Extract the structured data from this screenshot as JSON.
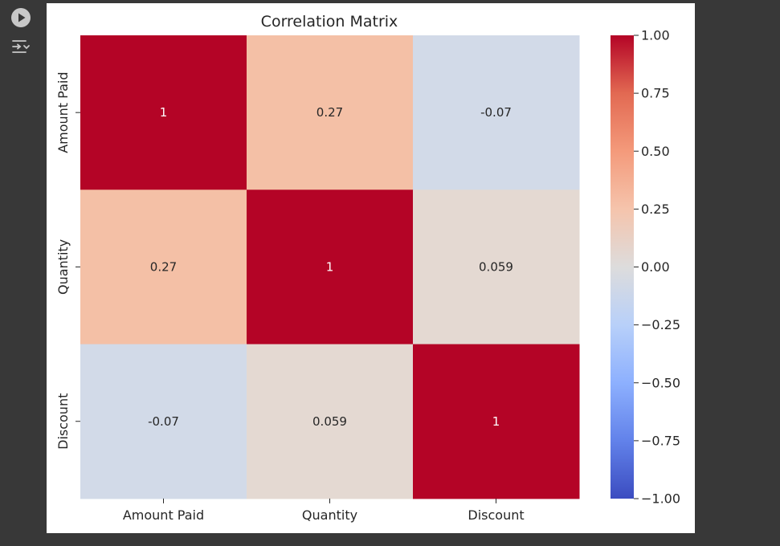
{
  "output_toolbar": {
    "run_icon": "play-circle-icon",
    "output_options_icon": "output-options-icon"
  },
  "chart_data": {
    "type": "heatmap",
    "title": "Correlation Matrix",
    "x_categories": [
      "Amount Paid",
      "Quantity",
      "Discount"
    ],
    "y_categories": [
      "Amount Paid",
      "Quantity",
      "Discount"
    ],
    "values": [
      [
        1,
        0.27,
        -0.07
      ],
      [
        0.27,
        1,
        0.059
      ],
      [
        -0.07,
        0.059,
        1
      ]
    ],
    "annotations": [
      [
        "1",
        "0.27",
        "-0.07"
      ],
      [
        "0.27",
        "1",
        "0.059"
      ],
      [
        "-0.07",
        "0.059",
        "1"
      ]
    ],
    "colormap": "coolwarm",
    "vmin": -1,
    "vmax": 1,
    "colorbar_ticks": [
      {
        "value": 1.0,
        "label": "1.00"
      },
      {
        "value": 0.75,
        "label": "0.75"
      },
      {
        "value": 0.5,
        "label": "0.50"
      },
      {
        "value": 0.25,
        "label": "0.25"
      },
      {
        "value": 0.0,
        "label": "0.00"
      },
      {
        "value": -0.25,
        "label": "−0.25"
      },
      {
        "value": -0.5,
        "label": "−0.50"
      },
      {
        "value": -0.75,
        "label": "−0.75"
      },
      {
        "value": -1.0,
        "label": "−1.00"
      }
    ],
    "cell_colors": [
      [
        "#b40426",
        "#f4c0a6",
        "#d2dae8"
      ],
      [
        "#f4c0a6",
        "#b40426",
        "#e4d9d2"
      ],
      [
        "#d2dae8",
        "#e4d9d2",
        "#b40426"
      ]
    ]
  }
}
